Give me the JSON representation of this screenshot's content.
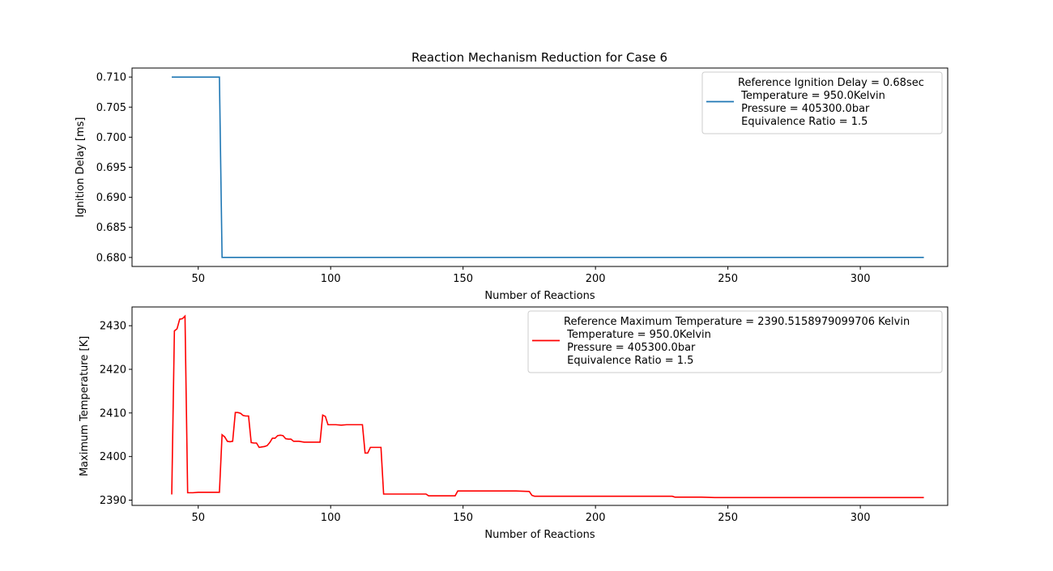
{
  "figure": {
    "title": "Reaction Mechanism Reduction for Case 6"
  },
  "chart_data": [
    {
      "type": "line",
      "title": "Reaction Mechanism Reduction for Case 6",
      "xlabel": "Number of Reactions",
      "ylabel": "Ignition Delay [ms]",
      "xlim": [
        25,
        333
      ],
      "ylim": [
        0.6785,
        0.7115
      ],
      "xticks": [
        50,
        100,
        150,
        200,
        250,
        300
      ],
      "yticks": [
        0.68,
        0.685,
        0.69,
        0.695,
        0.7,
        0.705,
        0.71
      ],
      "ytick_labels": [
        "0.680",
        "0.685",
        "0.690",
        "0.695",
        "0.700",
        "0.705",
        "0.710"
      ],
      "grid": false,
      "legend_position": "upper right",
      "series": [
        {
          "name": "Reference Ignition Delay = 0.68sec\n Temperature = 950.0Kelvin\n Pressure = 405300.0bar\n Equivalence Ratio = 1.5",
          "color": "#1f77b4",
          "x": [
            40,
            58,
            59,
            324
          ],
          "y": [
            0.71,
            0.71,
            0.68,
            0.68
          ]
        }
      ]
    },
    {
      "type": "line",
      "xlabel": "Number of Reactions",
      "ylabel": "Maximum Temperature [K]",
      "xlim": [
        25,
        333
      ],
      "ylim": [
        2388.8,
        2434.3
      ],
      "xticks": [
        50,
        100,
        150,
        200,
        250,
        300
      ],
      "yticks": [
        2390,
        2400,
        2410,
        2420,
        2430
      ],
      "ytick_labels": [
        "2390",
        "2400",
        "2410",
        "2420",
        "2430"
      ],
      "grid": false,
      "legend_position": "upper right",
      "series": [
        {
          "name": "Reference Maximum Temperature = 2390.5158979099706 Kelvin\n Temperature = 950.0Kelvin\n Pressure = 405300.0bar\n Equivalence Ratio = 1.5",
          "color": "#ff0000",
          "x": [
            40,
            41,
            42,
            43,
            44,
            45,
            46,
            48,
            50,
            52,
            55,
            58,
            59,
            60,
            61,
            62,
            63,
            64,
            65,
            66,
            67,
            68,
            69,
            70,
            71,
            72,
            73,
            74,
            75,
            76,
            77,
            78,
            79,
            80,
            81,
            82,
            83,
            84,
            85,
            86,
            87,
            88,
            90,
            92,
            94,
            96,
            97,
            98,
            99,
            100,
            102,
            104,
            106,
            108,
            110,
            112,
            113,
            114,
            115,
            116,
            118,
            119,
            120,
            125,
            130,
            136,
            137,
            140,
            145,
            147,
            148,
            150,
            155,
            160,
            165,
            170,
            175,
            176,
            177,
            178,
            180,
            190,
            200,
            210,
            220,
            228,
            229,
            230,
            240,
            245,
            250,
            260,
            270,
            280,
            290,
            300,
            310,
            324
          ],
          "y": [
            2391.3,
            2428.8,
            2429.3,
            2431.5,
            2431.6,
            2432.2,
            2391.7,
            2391.7,
            2391.8,
            2391.8,
            2391.8,
            2391.8,
            2405.0,
            2404.5,
            2403.5,
            2403.4,
            2403.5,
            2410.1,
            2410.1,
            2409.9,
            2409.4,
            2409.3,
            2409.3,
            2403.2,
            2403.1,
            2403.1,
            2402.1,
            2402.2,
            2402.3,
            2402.5,
            2403.2,
            2404.2,
            2404.2,
            2404.8,
            2404.9,
            2404.8,
            2404.1,
            2404.0,
            2404.0,
            2403.5,
            2403.5,
            2403.5,
            2403.3,
            2403.3,
            2403.3,
            2403.3,
            2409.5,
            2409.2,
            2407.3,
            2407.3,
            2407.3,
            2407.2,
            2407.3,
            2407.3,
            2407.3,
            2407.3,
            2400.8,
            2400.8,
            2402.1,
            2402.1,
            2402.1,
            2402.1,
            2391.4,
            2391.4,
            2391.4,
            2391.4,
            2391.0,
            2391.0,
            2391.0,
            2391.0,
            2392.1,
            2392.1,
            2392.1,
            2392.1,
            2392.1,
            2392.1,
            2392.0,
            2391.1,
            2390.9,
            2390.9,
            2390.9,
            2390.9,
            2390.9,
            2390.9,
            2390.9,
            2390.9,
            2390.9,
            2390.7,
            2390.7,
            2390.6,
            2390.6,
            2390.6,
            2390.6,
            2390.6,
            2390.6,
            2390.6,
            2390.6,
            2390.6
          ]
        }
      ]
    }
  ]
}
